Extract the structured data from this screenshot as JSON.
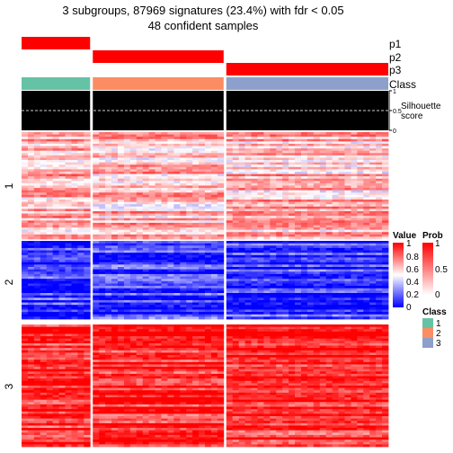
{
  "title": [
    "3 subgroups, 87969 signatures (23.4%) with fdr < 0.05",
    "48 confident samples"
  ],
  "colors": {
    "prob": "#ff0000",
    "class_1": "#66c2a5",
    "class_2": "#fc8d62",
    "class_3": "#8da0cb",
    "heat_low": "#0000ff",
    "heat_mid": "#ffffff",
    "heat_high": "#ff0000",
    "silhouette": "#000000"
  },
  "chart_data": {
    "type": "heatmap",
    "column_groups": [
      {
        "class": "1",
        "samples": 11
      },
      {
        "class": "2",
        "samples": 21
      },
      {
        "class": "3",
        "samples": 26
      }
    ],
    "row_groups": [
      {
        "label": "1",
        "level": 0.62
      },
      {
        "label": "2",
        "level": 0.12
      },
      {
        "label": "3",
        "level": 0.92
      }
    ],
    "annotations": {
      "prob_tracks": [
        {
          "label": "p1",
          "active_group": 0
        },
        {
          "label": "p2",
          "active_group": 1
        },
        {
          "label": "p3",
          "active_group": 2
        }
      ],
      "class_track_label": "Class",
      "silhouette": {
        "label": [
          "Silhouette",
          "score"
        ],
        "ticks": [
          "1",
          "0.5",
          "0"
        ],
        "values": [
          1,
          1,
          1
        ],
        "threshold": 0.5
      }
    },
    "legends": {
      "value": {
        "title": "Value",
        "ticks": [
          "1",
          "0.8",
          "0.6",
          "0.4",
          "0.2",
          "0"
        ],
        "range": [
          0,
          1
        ]
      },
      "prob": {
        "title": "Prob",
        "ticks": [
          "1",
          "0.5",
          "0"
        ],
        "range": [
          0,
          1
        ]
      },
      "class": {
        "title": "Class",
        "items": [
          "1",
          "2",
          "3"
        ]
      }
    }
  }
}
